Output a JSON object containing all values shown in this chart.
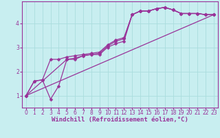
{
  "background_color": "#c8eef0",
  "grid_color": "#aadddd",
  "line_color": "#993399",
  "marker": "D",
  "markersize": 2.5,
  "linewidth": 0.9,
  "xlabel": "Windchill (Refroidissement éolien,°C)",
  "xlabel_fontsize": 6.5,
  "tick_fontsize": 5.5,
  "ylim": [
    0.5,
    4.9
  ],
  "xlim": [
    -0.5,
    23.5
  ],
  "yticks": [
    1,
    2,
    3,
    4
  ],
  "xtick_labels": [
    "0",
    "1",
    "2",
    "3",
    "4",
    "5",
    "6",
    "7",
    "8",
    "9",
    "10",
    "11",
    "12",
    "13",
    "14",
    "15",
    "16",
    "17",
    "18",
    "19",
    "20",
    "21",
    "22",
    "23"
  ],
  "series": [
    {
      "x": [
        0,
        1,
        2,
        3,
        4,
        5,
        6,
        7,
        8,
        9,
        10,
        11,
        12,
        13,
        14,
        15,
        16,
        17,
        18,
        19,
        20,
        21,
        22,
        23
      ],
      "y": [
        1.0,
        1.6,
        1.65,
        0.85,
        1.4,
        2.5,
        2.5,
        2.65,
        2.7,
        2.7,
        3.0,
        3.15,
        3.25,
        4.35,
        4.5,
        4.5,
        4.6,
        4.65,
        4.55,
        4.4,
        4.4,
        4.4,
        4.35,
        4.35
      ]
    },
    {
      "x": [
        0,
        1,
        2,
        3,
        4,
        5,
        6,
        7,
        8,
        9,
        10,
        11,
        12,
        13,
        14,
        15,
        16,
        17,
        18,
        19,
        20,
        21,
        22,
        23
      ],
      "y": [
        1.0,
        1.6,
        1.65,
        2.5,
        2.5,
        2.6,
        2.65,
        2.7,
        2.75,
        2.8,
        3.1,
        3.3,
        3.4,
        4.35,
        4.5,
        4.5,
        4.6,
        4.65,
        4.55,
        4.4,
        4.4,
        4.4,
        4.35,
        4.35
      ]
    },
    {
      "x": [
        0,
        5,
        6,
        7,
        8,
        9,
        10,
        11,
        12,
        13,
        14,
        15,
        16,
        17,
        18,
        19,
        20,
        21,
        22,
        23
      ],
      "y": [
        1.0,
        2.5,
        2.55,
        2.65,
        2.7,
        2.75,
        3.05,
        3.25,
        3.35,
        4.35,
        4.5,
        4.5,
        4.6,
        4.65,
        4.55,
        4.4,
        4.4,
        4.4,
        4.35,
        4.35
      ]
    },
    {
      "x": [
        0,
        23
      ],
      "y": [
        1.0,
        4.35
      ]
    }
  ]
}
